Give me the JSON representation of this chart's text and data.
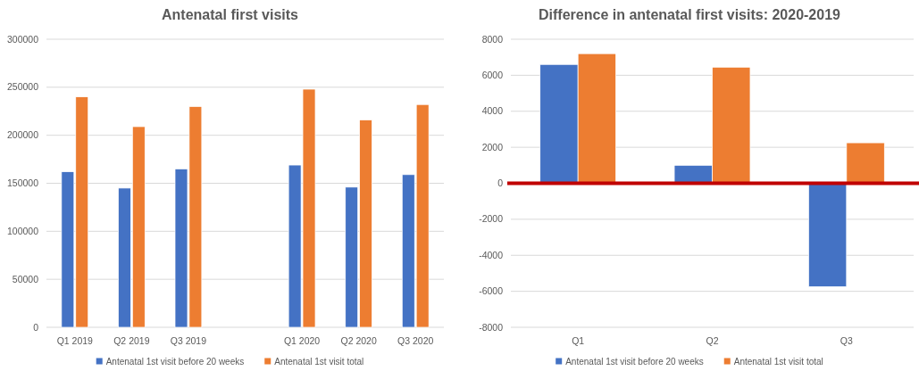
{
  "chart_data": [
    {
      "type": "bar",
      "title": "Antenatal first visits",
      "categories": [
        "Q1 2019",
        "Q2 2019",
        "Q3 2019",
        null,
        "Q1 2020",
        "Q2 2020",
        "Q3 2020"
      ],
      "series": [
        {
          "name": "Antenatal 1st visit before 20 weeks",
          "color": "#4472c4",
          "values": [
            162000,
            145000,
            165000,
            null,
            169000,
            146000,
            159000
          ]
        },
        {
          "name": "Antenatal 1st visit total",
          "color": "#ed7d31",
          "values": [
            240000,
            209000,
            230000,
            null,
            248000,
            216000,
            232000
          ]
        }
      ],
      "ylim": [
        0,
        300000
      ],
      "yticks": [
        0,
        50000,
        100000,
        150000,
        200000,
        250000,
        300000
      ],
      "grid": "y",
      "legend": "bottom"
    },
    {
      "type": "bar",
      "title": "Difference in antenatal first visits: 2020-2019",
      "categories": [
        "Q1",
        "Q2",
        "Q3"
      ],
      "series": [
        {
          "name": "Antenatal 1st visit before 20 weeks",
          "color": "#4472c4",
          "values": [
            6600,
            1000,
            -5750
          ]
        },
        {
          "name": "Antenatal 1st visit total",
          "color": "#ed7d31",
          "values": [
            7200,
            6450,
            2250
          ]
        }
      ],
      "ylim": [
        -8000,
        8000
      ],
      "yticks": [
        -8000,
        -6000,
        -4000,
        -2000,
        0,
        2000,
        4000,
        6000,
        8000
      ],
      "grid": "y",
      "legend": "bottom",
      "ref_lines": [
        {
          "axis": "y",
          "value": 0,
          "color": "#c00000"
        }
      ]
    }
  ]
}
